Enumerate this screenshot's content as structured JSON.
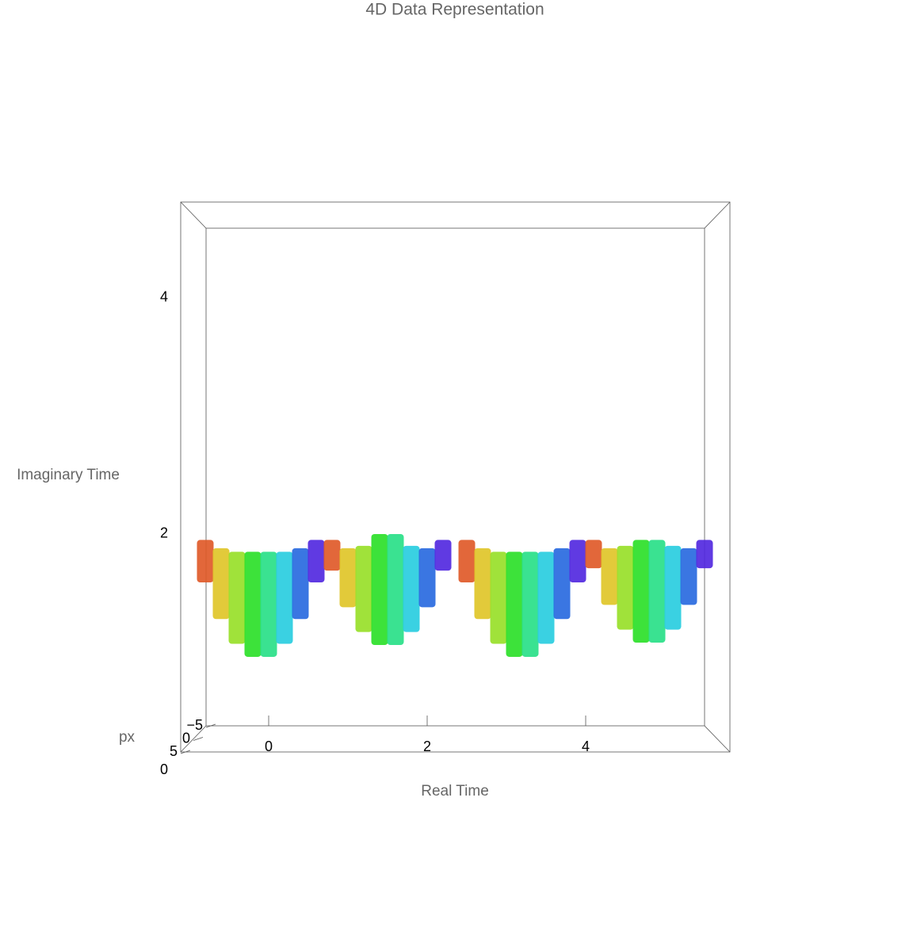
{
  "chart_data": {
    "type": "surface3d",
    "title": "4D Data Representation",
    "x_label": "Real Time",
    "y_label": "Imaginary Time",
    "z_label": "px",
    "colorscale": "rainbow",
    "xlim": [
      -0.79,
      5.5
    ],
    "xticks": [
      0,
      2,
      4
    ],
    "ylim": [
      0,
      4.59
    ],
    "yticks": [
      0,
      2,
      4
    ],
    "zlim": [
      -5,
      5
    ],
    "zticks": [
      {
        "value": -5,
        "label": "−5"
      },
      0,
      5
    ],
    "x": [
      -0.8,
      -0.6,
      -0.4,
      -0.2,
      0.0,
      0.2,
      0.4,
      0.6,
      0.8,
      1.0,
      1.2,
      1.4,
      1.6,
      1.8,
      2.0,
      2.2,
      2.5,
      2.7,
      2.9,
      3.1,
      3.3,
      3.5,
      3.7,
      3.9,
      4.1,
      4.3,
      4.5,
      4.7,
      4.9,
      5.1,
      5.3,
      5.5
    ],
    "low": [
      1.59,
      1.28,
      1.07,
      0.96,
      0.96,
      1.07,
      1.28,
      1.59,
      1.69,
      1.38,
      1.17,
      1.06,
      1.06,
      1.17,
      1.38,
      1.69,
      1.59,
      1.28,
      1.07,
      0.96,
      0.96,
      1.07,
      1.28,
      1.59,
      1.71,
      1.4,
      1.19,
      1.08,
      1.08,
      1.19,
      1.4,
      1.71
    ],
    "high": [
      1.95,
      1.88,
      1.85,
      1.85,
      1.85,
      1.85,
      1.88,
      1.95,
      1.95,
      1.88,
      1.9,
      2.0,
      2.0,
      1.9,
      1.88,
      1.95,
      1.95,
      1.88,
      1.85,
      1.85,
      1.85,
      1.85,
      1.88,
      1.95,
      1.95,
      1.88,
      1.9,
      1.95,
      1.95,
      1.9,
      1.88,
      1.95
    ],
    "c": [
      0.06,
      0.19,
      0.31,
      0.44,
      0.56,
      0.69,
      0.81,
      0.94,
      0.06,
      0.19,
      0.31,
      0.44,
      0.56,
      0.69,
      0.81,
      0.94,
      0.06,
      0.19,
      0.31,
      0.44,
      0.56,
      0.69,
      0.81,
      0.94,
      0.06,
      0.19,
      0.31,
      0.44,
      0.56,
      0.69,
      0.81,
      0.94
    ]
  }
}
